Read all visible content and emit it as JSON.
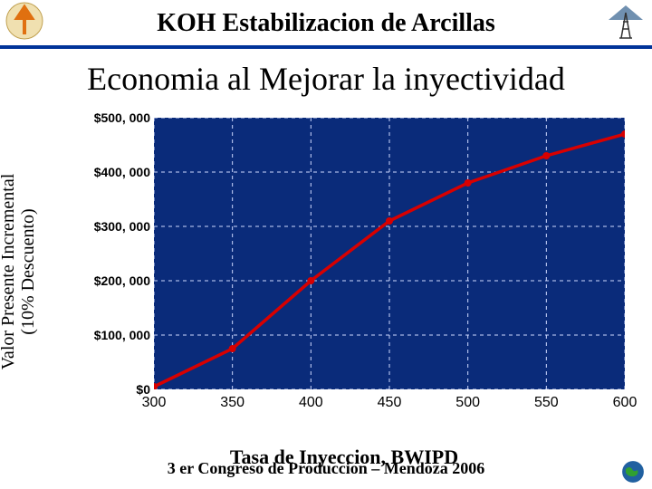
{
  "header": {
    "title": "KOH Estabilizacion de Arcillas",
    "title_fontsize": 28,
    "underline_color": "#003399"
  },
  "subtitle": {
    "text": "Economia al Mejorar la inyectividad",
    "fontsize": 36
  },
  "chart": {
    "type": "line",
    "background_color": "#0a2b7a",
    "grid_color": "#cfd8ff",
    "grid_dash": "4,4",
    "line_color": "#d80000",
    "line_width": 3.5,
    "marker_color": "#d80000",
    "marker_size": 4,
    "ylabel_line1": "Valor Presente Incremental",
    "ylabel_line2": "(10% Descuento)",
    "ylabel_fontsize": 20,
    "xlabel": "Tasa de Inyeccion, BWIPD",
    "xlabel_fontsize": 22,
    "xlim": [
      300,
      600
    ],
    "ylim": [
      0,
      500000
    ],
    "xtick_step": 50,
    "ytick_step": 100000,
    "ytick_labels": [
      "$0",
      "$100, 000",
      "$200, 000",
      "$300, 000",
      "$400, 000",
      "$500, 000"
    ],
    "xtick_labels": [
      "300",
      "350",
      "400",
      "450",
      "500",
      "550",
      "600"
    ],
    "series": {
      "x": [
        300,
        350,
        400,
        450,
        500,
        550,
        600
      ],
      "y": [
        5000,
        75000,
        200000,
        310000,
        380000,
        430000,
        470000
      ]
    },
    "tick_font": "Arial",
    "ytick_fontsize": 14,
    "xtick_fontsize": 16
  },
  "footer": {
    "text": "3 er Congreso de Produccion – Mendoza 2006",
    "fontsize": 18
  },
  "icons": {
    "left_logo_bg": "#f0e0b0",
    "left_logo_arrow": "#e07010",
    "right_logo_roof": "#7090b0",
    "right_logo_derrick": "#333333",
    "globe_fill": "#2060a0",
    "globe_land": "#30a030"
  }
}
